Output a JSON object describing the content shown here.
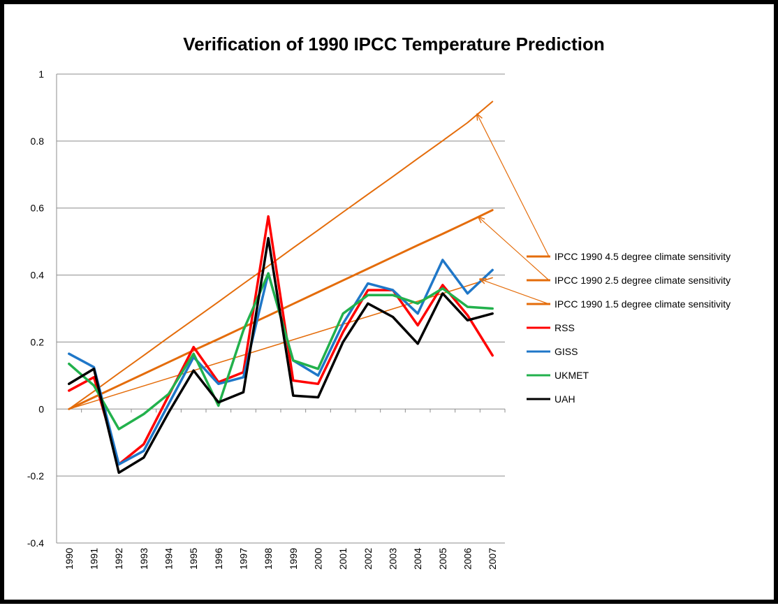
{
  "chart_data": {
    "type": "line",
    "title": "Verification of 1990 IPCC Temperature Prediction",
    "xlabel": "",
    "ylabel": "",
    "ylim": [
      -0.4,
      1
    ],
    "yticks": [
      "-0.4",
      "-0.2",
      "0",
      "0.2",
      "0.4",
      "0.6",
      "0.8",
      "1"
    ],
    "ytick_values": [
      -0.4,
      -0.2,
      0,
      0.2,
      0.4,
      0.6,
      0.8,
      1
    ],
    "x": [
      "1990",
      "1991",
      "1992",
      "1993",
      "1994",
      "1995",
      "1996",
      "1997",
      "1998",
      "1999",
      "2000",
      "2001",
      "2002",
      "2003",
      "2004",
      "2005",
      "2006",
      "2007"
    ],
    "grid": true,
    "legend_position": "right",
    "series": [
      {
        "name": "IPCC 1990 4.5 degree climate sensitivity",
        "color": "#E46C0A",
        "width": 2,
        "values": [
          0,
          0.053,
          0.107,
          0.16,
          0.214,
          0.267,
          0.32,
          0.374,
          0.427,
          0.481,
          0.534,
          0.588,
          0.641,
          0.694,
          0.748,
          0.801,
          0.855,
          0.918
        ]
      },
      {
        "name": "IPCC 1990 2.5 degree climate sensitivity",
        "color": "#E46C0A",
        "width": 3,
        "values": [
          0,
          0.035,
          0.07,
          0.105,
          0.14,
          0.175,
          0.209,
          0.244,
          0.279,
          0.314,
          0.349,
          0.384,
          0.419,
          0.454,
          0.489,
          0.523,
          0.558,
          0.594
        ]
      },
      {
        "name": "IPCC 1990 1.5 degree climate sensitivity",
        "color": "#E46C0A",
        "width": 1.5,
        "values": [
          0,
          0.023,
          0.046,
          0.069,
          0.092,
          0.115,
          0.138,
          0.161,
          0.184,
          0.207,
          0.23,
          0.253,
          0.276,
          0.299,
          0.322,
          0.345,
          0.368,
          0.392
        ]
      },
      {
        "name": "RSS",
        "color": "#FF0000",
        "width": 3.5,
        "values": [
          0.055,
          0.095,
          -0.165,
          -0.105,
          0.04,
          0.185,
          0.08,
          0.11,
          0.575,
          0.085,
          0.075,
          0.23,
          0.355,
          0.355,
          0.25,
          0.37,
          0.28,
          0.16
        ]
      },
      {
        "name": "GISS",
        "color": "#1F77C8",
        "width": 3.5,
        "values": [
          0.165,
          0.125,
          -0.165,
          -0.125,
          0.015,
          0.155,
          0.075,
          0.095,
          0.405,
          0.145,
          0.1,
          0.255,
          0.375,
          0.355,
          0.285,
          0.445,
          0.345,
          0.415
        ]
      },
      {
        "name": "UKMET",
        "color": "#22B14C",
        "width": 3.5,
        "values": [
          0.135,
          0.07,
          -0.06,
          -0.015,
          0.045,
          0.165,
          0.01,
          0.235,
          0.405,
          0.145,
          0.12,
          0.285,
          0.34,
          0.34,
          0.315,
          0.36,
          0.305,
          0.3
        ]
      },
      {
        "name": "UAH",
        "color": "#000000",
        "width": 3.5,
        "values": [
          0.075,
          0.12,
          -0.19,
          -0.145,
          -0.01,
          0.115,
          0.02,
          0.05,
          0.51,
          0.04,
          0.035,
          0.2,
          0.315,
          0.275,
          0.195,
          0.345,
          0.265,
          0.285
        ]
      }
    ]
  }
}
